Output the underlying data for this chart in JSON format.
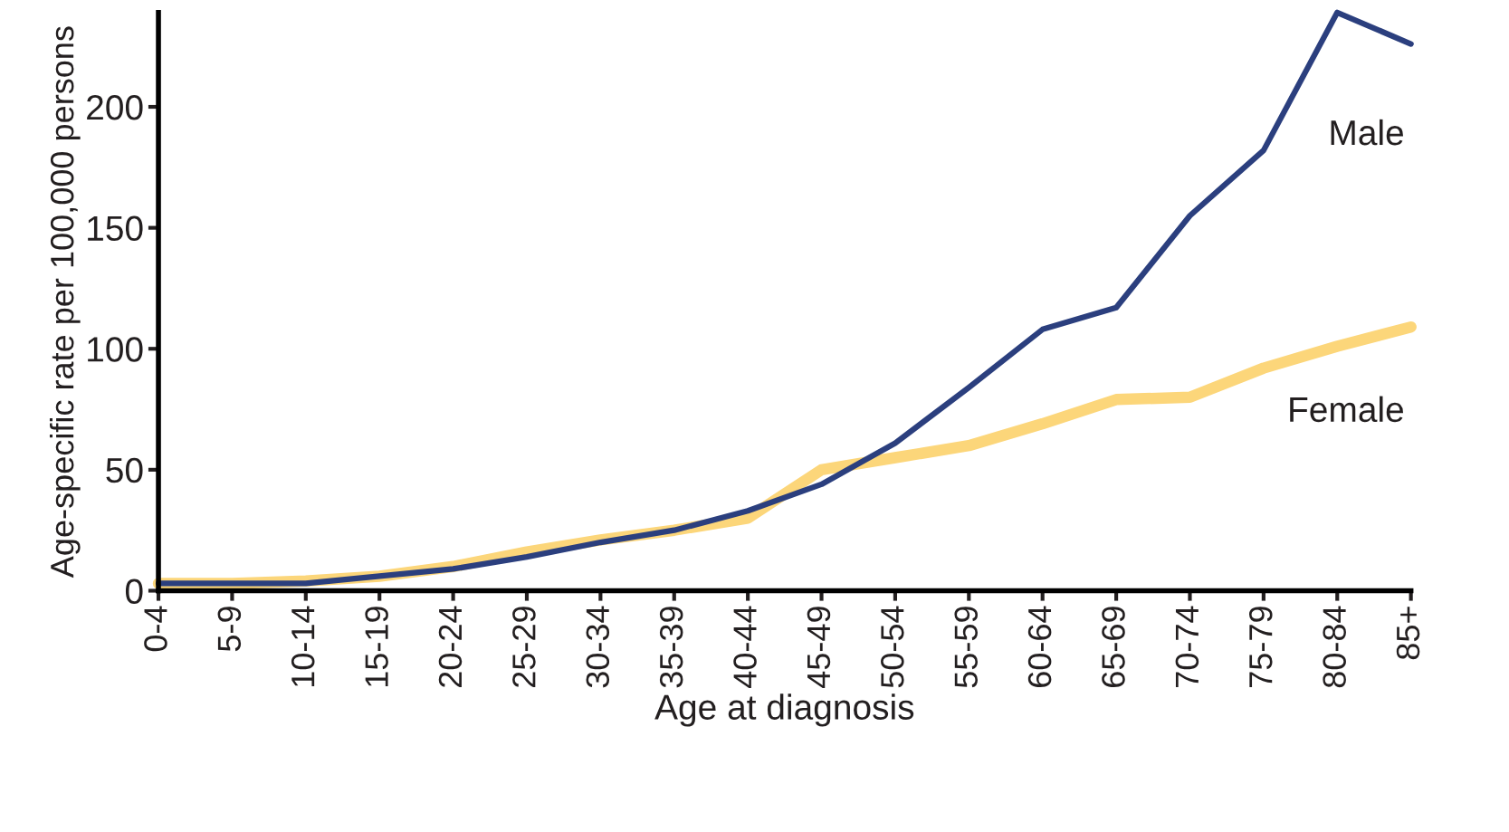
{
  "chart_data": {
    "type": "line",
    "xlabel": "Age at diagnosis",
    "ylabel": "Age-specific rate per 100,000 persons",
    "categories": [
      "0-4",
      "5-9",
      "10-14",
      "15-19",
      "20-24",
      "25-29",
      "30-34",
      "35-39",
      "40-44",
      "45-49",
      "50-54",
      "55-59",
      "60-64",
      "65-69",
      "70-74",
      "75-79",
      "80-84",
      "85+"
    ],
    "series": [
      {
        "name": "Female",
        "color": "#fcd67a",
        "values": [
          3,
          3,
          4,
          6,
          10,
          16,
          21,
          25,
          30,
          50,
          55,
          60,
          69,
          79,
          80,
          92,
          101,
          109
        ]
      },
      {
        "name": "Male",
        "color": "#2b3f7e",
        "values": [
          3,
          3,
          3,
          6,
          9,
          14,
          20,
          25,
          33,
          44,
          61,
          84,
          108,
          117,
          155,
          182,
          239,
          226
        ]
      }
    ],
    "ylim": [
      0,
      239
    ],
    "yticks": [
      0,
      50,
      100,
      150,
      200
    ],
    "grid": false,
    "legend": false,
    "marker": "none",
    "line_style": "solid"
  }
}
